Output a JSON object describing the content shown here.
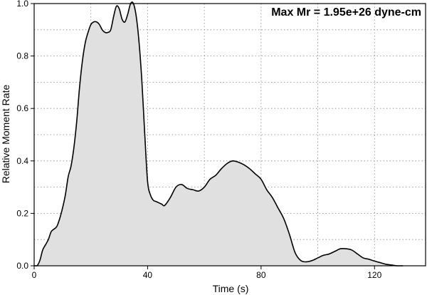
{
  "chart_data": {
    "type": "area",
    "title": "Max Mr = 1.95e+26 dyne-cm",
    "xlabel": "Time (s)",
    "ylabel": "Relative Moment Rate",
    "xlim": [
      0,
      138
    ],
    "ylim": [
      0,
      1.0
    ],
    "x_ticks": [
      0,
      40,
      80,
      120
    ],
    "y_ticks": [
      0.0,
      0.2,
      0.4,
      0.6,
      0.8,
      1.0
    ],
    "x_tick_labels": [
      "0",
      "40",
      "80",
      "120"
    ],
    "y_tick_labels": [
      "0.0",
      "0.2",
      "0.4",
      "0.6",
      "0.8",
      "1.0"
    ],
    "x_minor_grid": [
      20,
      60,
      100
    ],
    "y_minor_grid": [
      0.1,
      0.3,
      0.5,
      0.7,
      0.9
    ],
    "grid": true,
    "fill_color": "#e0e0e0",
    "line_color": "#000000",
    "x": [
      0,
      1,
      2,
      3,
      4,
      5,
      6,
      7,
      8,
      9,
      10,
      11,
      12,
      13,
      14,
      15,
      16,
      17,
      18,
      19,
      20,
      21,
      22,
      23,
      24,
      25,
      26,
      27,
      28,
      29,
      30,
      31,
      32,
      33,
      34,
      35,
      36,
      37,
      38,
      39,
      40,
      41,
      42,
      43,
      44,
      45,
      46,
      48,
      50,
      52,
      54,
      56,
      58,
      60,
      62,
      64,
      66,
      68,
      70,
      72,
      74,
      76,
      78,
      80,
      82,
      84,
      86,
      88,
      90,
      92,
      94,
      96,
      98,
      100,
      102,
      104,
      106,
      108,
      110,
      112,
      114,
      116,
      118,
      120,
      122,
      124,
      126,
      128,
      130
    ],
    "y": [
      0,
      0.0,
      0.02,
      0.06,
      0.08,
      0.1,
      0.13,
      0.14,
      0.15,
      0.18,
      0.22,
      0.27,
      0.34,
      0.38,
      0.45,
      0.55,
      0.68,
      0.78,
      0.85,
      0.89,
      0.92,
      0.93,
      0.93,
      0.92,
      0.9,
      0.89,
      0.89,
      0.9,
      0.95,
      0.99,
      0.98,
      0.94,
      0.93,
      0.96,
      1.0,
      1.0,
      0.95,
      0.85,
      0.7,
      0.5,
      0.32,
      0.27,
      0.25,
      0.245,
      0.24,
      0.235,
      0.23,
      0.26,
      0.3,
      0.31,
      0.295,
      0.29,
      0.285,
      0.3,
      0.33,
      0.345,
      0.37,
      0.39,
      0.4,
      0.395,
      0.385,
      0.37,
      0.35,
      0.33,
      0.29,
      0.26,
      0.22,
      0.18,
      0.12,
      0.05,
      0.02,
      0.015,
      0.02,
      0.03,
      0.04,
      0.045,
      0.055,
      0.065,
      0.065,
      0.06,
      0.045,
      0.03,
      0.025,
      0.018,
      0.012,
      0.006,
      0.003,
      0.0,
      0.0
    ]
  }
}
